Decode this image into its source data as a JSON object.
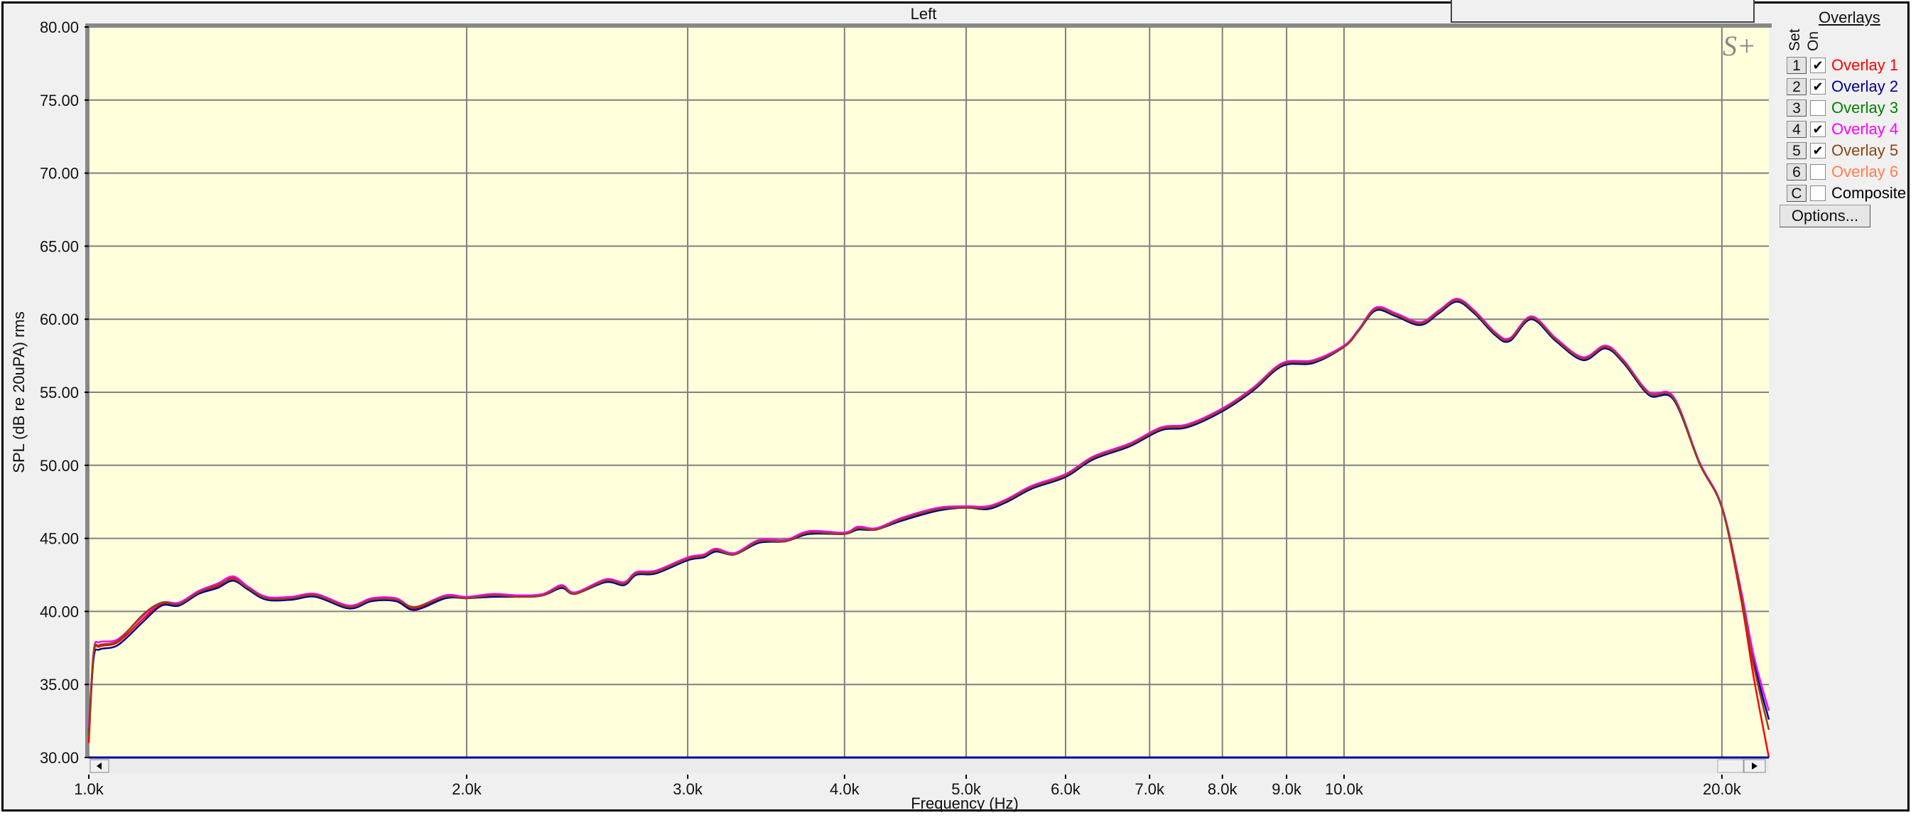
{
  "chart_title": "Left",
  "watermark": "S+",
  "overlays_panel": {
    "title": "Overlays",
    "set_header": "Set",
    "on_header": "On",
    "items": [
      {
        "set": "1",
        "label": "Overlay 1",
        "checked": true,
        "color": "#ff0000"
      },
      {
        "set": "2",
        "label": "Overlay 2",
        "checked": true,
        "color": "#00008b"
      },
      {
        "set": "3",
        "label": "Overlay 3",
        "checked": false,
        "color": "#008000"
      },
      {
        "set": "4",
        "label": "Overlay 4",
        "checked": true,
        "color": "#ff00ff"
      },
      {
        "set": "5",
        "label": "Overlay 5",
        "checked": true,
        "color": "#8b4513"
      },
      {
        "set": "6",
        "label": "Overlay 6",
        "checked": false,
        "color": "#ff7f50"
      },
      {
        "set": "C",
        "label": "Composite",
        "checked": false,
        "color": "#000000"
      }
    ],
    "options_label": "Options..."
  },
  "chart_data": {
    "type": "line",
    "title": "Left",
    "xlabel": "Frequency (Hz)",
    "ylabel": "SPL (dB re 20uPA) rms",
    "xscale": "log",
    "xlim": [
      1000,
      21800
    ],
    "ylim": [
      30,
      80
    ],
    "grid": true,
    "background": "#ffffdc",
    "yticks": [
      "80.00",
      "75.00",
      "70.00",
      "65.00",
      "60.00",
      "55.00",
      "50.00",
      "45.00",
      "40.00",
      "35.00",
      "30.00"
    ],
    "xticks": [
      {
        "value": 1000,
        "label": "1.0k"
      },
      {
        "value": 2000,
        "label": "2.0k"
      },
      {
        "value": 3000,
        "label": "3.0k"
      },
      {
        "value": 4000,
        "label": "4.0k"
      },
      {
        "value": 5000,
        "label": "5.0k"
      },
      {
        "value": 6000,
        "label": "6.0k"
      },
      {
        "value": 7000,
        "label": "7.0k"
      },
      {
        "value": 8000,
        "label": "8.0k"
      },
      {
        "value": 9000,
        "label": "9.0k"
      },
      {
        "value": 10000,
        "label": "10.0k"
      },
      {
        "value": 20000,
        "label": "20.0k"
      }
    ],
    "x": [
      1000,
      1009,
      1020,
      1055,
      1105,
      1143,
      1180,
      1223,
      1266,
      1303,
      1339,
      1385,
      1450,
      1516,
      1612,
      1680,
      1757,
      1818,
      1924,
      2000,
      2100,
      2200,
      2300,
      2380,
      2440,
      2580,
      2670,
      2730,
      2830,
      3000,
      3090,
      3160,
      3270,
      3420,
      3590,
      3750,
      4000,
      4100,
      4240,
      4440,
      4750,
      5000,
      5200,
      5390,
      5640,
      6000,
      6310,
      6750,
      7150,
      7500,
      8000,
      8460,
      8930,
      9450,
      10000,
      10270,
      10600,
      11000,
      11500,
      11900,
      12300,
      12700,
      13200,
      13550,
      14100,
      14750,
      15500,
      16150,
      16700,
      17500,
      18300,
      19200,
      20000,
      20700,
      21200,
      21800
    ],
    "series": [
      {
        "name": "Overlay 1",
        "color": "#ff0000",
        "y": [
          31.0,
          37.0,
          37.6,
          37.9,
          39.5,
          40.5,
          40.5,
          41.3,
          41.7,
          42.3,
          41.6,
          40.9,
          40.9,
          41.1,
          40.3,
          40.8,
          40.8,
          40.2,
          41.0,
          40.9,
          41.1,
          41.0,
          41.1,
          41.7,
          41.2,
          42.1,
          41.9,
          42.6,
          42.7,
          43.6,
          43.7,
          44.2,
          43.9,
          44.8,
          44.8,
          45.4,
          45.3,
          45.7,
          45.6,
          46.3,
          47.0,
          47.1,
          47.1,
          47.6,
          48.5,
          49.3,
          50.5,
          51.4,
          52.5,
          52.7,
          53.8,
          55.2,
          56.9,
          57.1,
          58.1,
          59.2,
          60.7,
          60.3,
          59.7,
          60.5,
          61.3,
          60.5,
          59.0,
          58.6,
          60.1,
          58.6,
          57.3,
          58.1,
          57.1,
          54.9,
          54.6,
          50.1,
          47.1,
          41.0,
          35.5,
          30.0
        ]
      },
      {
        "name": "Overlay 2",
        "color": "#00008b",
        "y": [
          31.8,
          36.8,
          37.4,
          37.7,
          39.3,
          40.4,
          40.4,
          41.2,
          41.6,
          42.1,
          41.5,
          40.8,
          40.8,
          41.0,
          40.2,
          40.7,
          40.7,
          40.1,
          40.9,
          40.9,
          41.0,
          41.0,
          41.1,
          41.6,
          41.2,
          42.0,
          41.8,
          42.5,
          42.6,
          43.5,
          43.7,
          44.1,
          43.9,
          44.7,
          44.8,
          45.3,
          45.3,
          45.6,
          45.6,
          46.2,
          46.9,
          47.1,
          47.0,
          47.5,
          48.4,
          49.2,
          50.4,
          51.3,
          52.4,
          52.6,
          53.7,
          55.1,
          56.8,
          57.0,
          58.1,
          59.2,
          60.6,
          60.2,
          59.6,
          60.4,
          61.2,
          60.4,
          58.9,
          58.5,
          60.0,
          58.5,
          57.2,
          58.0,
          57.0,
          54.8,
          54.5,
          50.1,
          47.1,
          41.4,
          36.6,
          32.6
        ]
      },
      {
        "name": "Overlay 4",
        "color": "#ff00ff",
        "y": [
          32.0,
          37.3,
          37.9,
          38.1,
          39.7,
          40.6,
          40.6,
          41.4,
          41.9,
          42.4,
          41.7,
          41.0,
          41.0,
          41.2,
          40.4,
          40.9,
          40.9,
          40.3,
          41.1,
          41.0,
          41.2,
          41.1,
          41.2,
          41.8,
          41.3,
          42.2,
          42.0,
          42.7,
          42.8,
          43.7,
          43.9,
          44.3,
          44.0,
          44.9,
          44.9,
          45.5,
          45.4,
          45.8,
          45.7,
          46.4,
          47.1,
          47.2,
          47.2,
          47.7,
          48.6,
          49.4,
          50.6,
          51.5,
          52.6,
          52.8,
          53.9,
          55.3,
          57.0,
          57.2,
          58.2,
          59.3,
          60.8,
          60.4,
          59.8,
          60.6,
          61.4,
          60.6,
          59.1,
          58.7,
          60.2,
          58.7,
          57.4,
          58.2,
          57.2,
          55.0,
          54.7,
          50.2,
          47.2,
          41.6,
          37.0,
          33.2
        ]
      },
      {
        "name": "Overlay 5",
        "color": "#8b4513",
        "y": [
          31.5,
          37.1,
          37.7,
          38.0,
          39.8,
          40.6,
          40.5,
          41.3,
          41.8,
          42.2,
          41.6,
          40.9,
          40.9,
          41.1,
          40.3,
          40.8,
          40.8,
          40.3,
          41.0,
          40.9,
          41.1,
          41.0,
          41.1,
          41.7,
          41.2,
          42.1,
          41.9,
          42.6,
          42.7,
          43.6,
          43.8,
          44.2,
          43.9,
          44.8,
          44.8,
          45.4,
          45.3,
          45.7,
          45.6,
          46.3,
          47.0,
          47.1,
          47.1,
          47.6,
          48.5,
          49.3,
          50.5,
          51.4,
          52.5,
          52.7,
          53.8,
          55.2,
          56.9,
          57.1,
          58.1,
          59.2,
          60.7,
          60.3,
          59.7,
          60.5,
          61.3,
          60.5,
          59.0,
          58.6,
          60.1,
          58.6,
          57.3,
          58.1,
          57.1,
          54.9,
          54.6,
          50.1,
          47.1,
          41.3,
          36.3,
          31.9
        ]
      }
    ]
  }
}
